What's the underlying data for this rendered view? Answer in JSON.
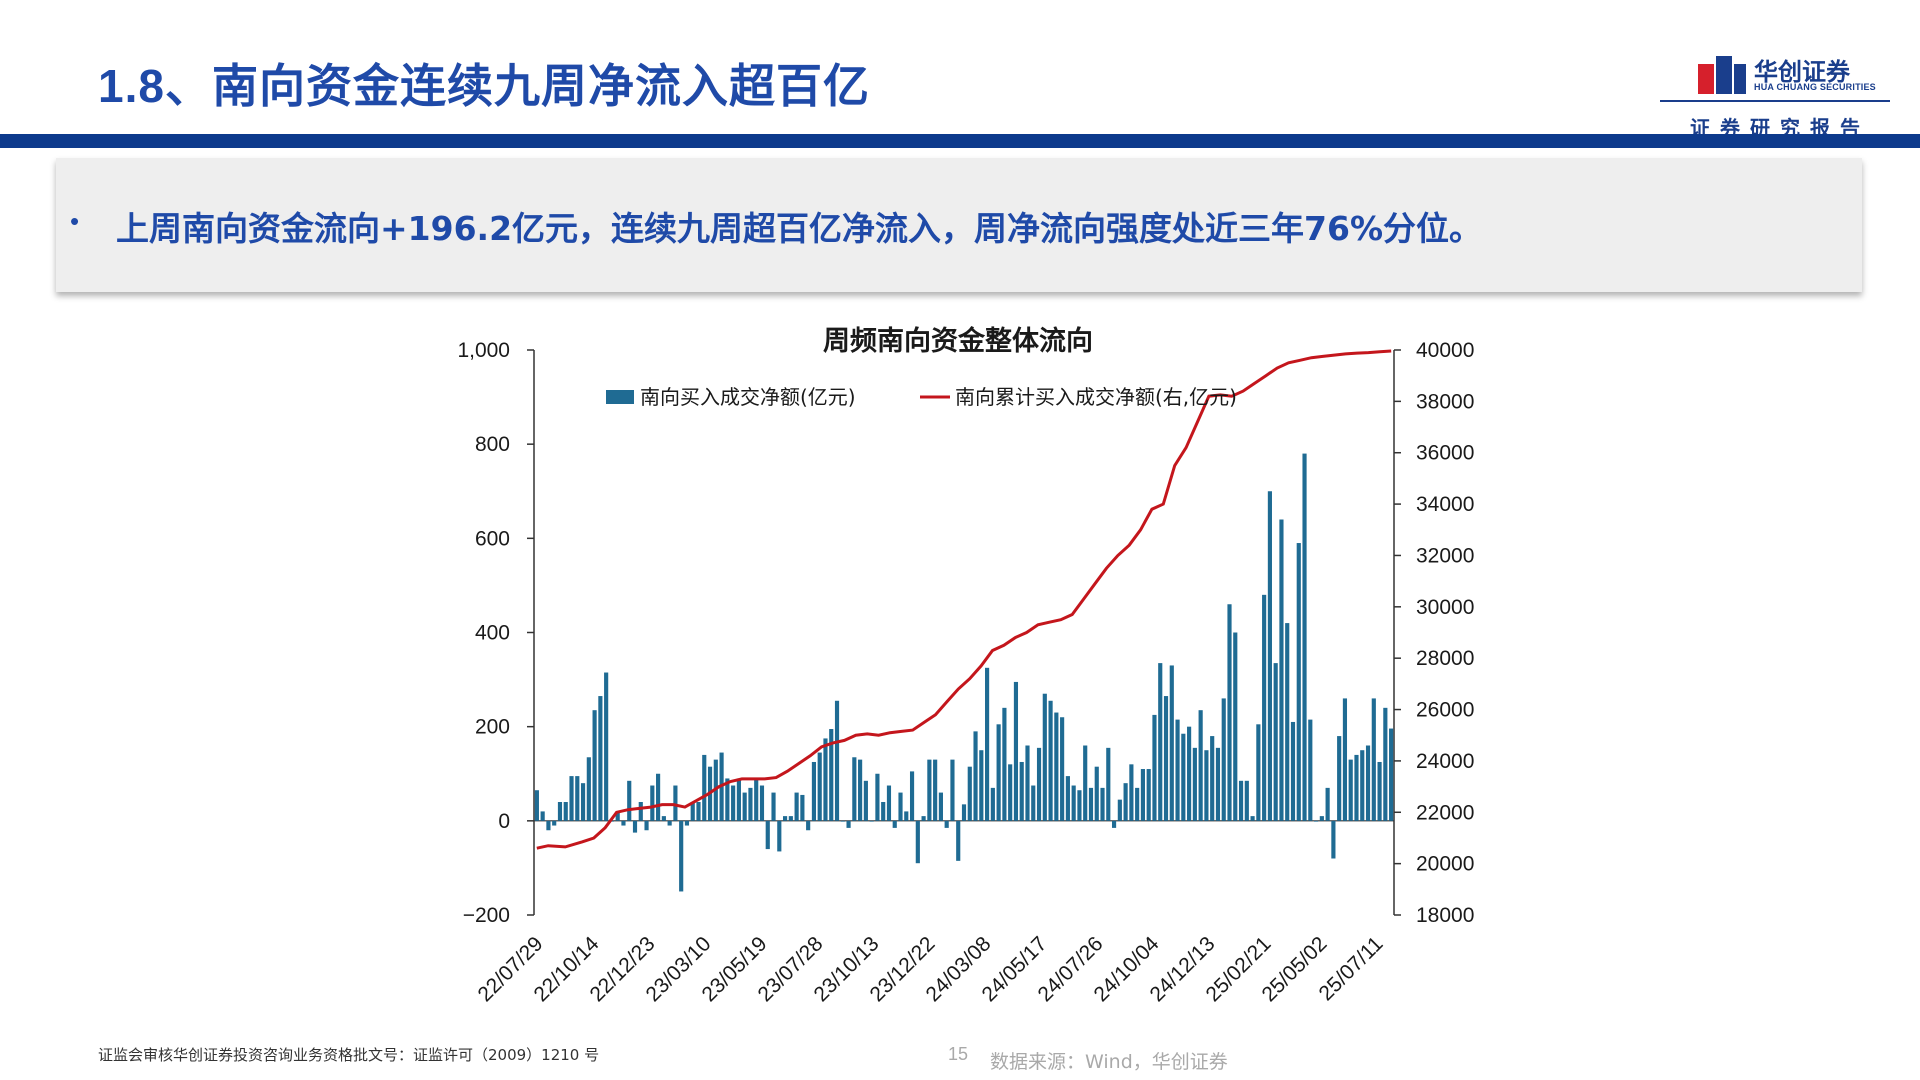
{
  "slide": {
    "title": "1.8、南向资金连续九周净流入超百亿",
    "summary_bullet": "•",
    "summary": "上周南向资金流向+196.2亿元，连续九周超百亿净流入，周净流向强度处近三年76%分位。"
  },
  "logo": {
    "company_cn": "华创证券",
    "company_en": "HUA CHUANG SECURITIES",
    "subtitle": "证券研究报告",
    "colors": {
      "blue": "#1a3e8c",
      "red": "#d6202c"
    }
  },
  "footer": {
    "license": "证监会审核华创证券投资咨询业务资格批文号：证监许可（2009）1210 号",
    "page_number": "15",
    "source": "数据来源：Wind，华创证券"
  },
  "colors": {
    "title_blue": "#1f4aa8",
    "bar_blue": "#1f6b93",
    "line_red": "#c4161c",
    "band": "#0d3a8c"
  },
  "chart_data": {
    "type": "bar",
    "title": "周频南向资金整体流向",
    "legend_position": "top",
    "grid": false,
    "x_tick_labels": [
      "22/07/29",
      "22/10/14",
      "22/12/23",
      "23/03/10",
      "23/05/19",
      "23/07/28",
      "23/10/13",
      "23/12/22",
      "24/03/08",
      "24/05/17",
      "24/07/26",
      "24/10/04",
      "24/12/13",
      "25/02/21",
      "25/05/02",
      "25/07/11"
    ],
    "y_left": {
      "ylim": [
        -200,
        1000
      ],
      "ticks": [
        "−200",
        "0",
        "200",
        "400",
        "600",
        "800",
        "1,000"
      ],
      "tick_values": [
        -200,
        0,
        200,
        400,
        600,
        800,
        1000
      ]
    },
    "y_right": {
      "ylim": [
        18000,
        40000
      ],
      "ticks": [
        "18000",
        "20000",
        "22000",
        "24000",
        "26000",
        "28000",
        "30000",
        "32000",
        "34000",
        "36000",
        "38000",
        "40000"
      ],
      "tick_values": [
        18000,
        20000,
        22000,
        24000,
        26000,
        28000,
        30000,
        32000,
        34000,
        36000,
        38000,
        40000
      ]
    },
    "series": [
      {
        "name": "南向买入成交净额(亿元)",
        "type": "bar",
        "axis": "left",
        "values": [
          65,
          20,
          -20,
          -10,
          40,
          40,
          95,
          95,
          80,
          135,
          235,
          265,
          315,
          0,
          20,
          -10,
          85,
          -25,
          40,
          -20,
          75,
          100,
          10,
          -10,
          75,
          -150,
          -10,
          40,
          40,
          140,
          115,
          130,
          145,
          90,
          75,
          90,
          60,
          70,
          90,
          75,
          -60,
          60,
          -65,
          10,
          10,
          60,
          55,
          -20,
          125,
          145,
          175,
          195,
          255,
          0,
          -15,
          135,
          130,
          85,
          0,
          100,
          40,
          75,
          -15,
          60,
          20,
          105,
          -90,
          10,
          130,
          130,
          60,
          -15,
          130,
          -85,
          35,
          115,
          190,
          150,
          325,
          70,
          205,
          240,
          120,
          295,
          125,
          160,
          75,
          155,
          270,
          255,
          230,
          220,
          95,
          75,
          65,
          160,
          70,
          115,
          70,
          155,
          -15,
          45,
          80,
          120,
          70,
          110,
          110,
          225,
          335,
          265,
          330,
          215,
          185,
          200,
          155,
          235,
          150,
          180,
          155,
          260,
          460,
          400,
          85,
          85,
          10,
          205,
          480,
          700,
          335,
          640,
          420,
          210,
          590,
          780,
          215,
          0,
          10,
          70,
          -80,
          180,
          260,
          130,
          140,
          150,
          160,
          260,
          125,
          240,
          196
        ]
      },
      {
        "name": "南向累计买入成交净额(右,亿元)",
        "type": "line",
        "axis": "right",
        "points_x": [
          0,
          2,
          5,
          8,
          10,
          12,
          14,
          16,
          18,
          20,
          22,
          24,
          26,
          28,
          30,
          32,
          34,
          36,
          38,
          40,
          42,
          44,
          46,
          48,
          50,
          52,
          54,
          56,
          58,
          60,
          62,
          64,
          66,
          68,
          70,
          72,
          74,
          76,
          78,
          80,
          82,
          84,
          86,
          88,
          90,
          92,
          94,
          96,
          98,
          100,
          102,
          104,
          106,
          108,
          110,
          112,
          114,
          116,
          118,
          120,
          122,
          124,
          126,
          128,
          130,
          132,
          134,
          136,
          138,
          140,
          142,
          144,
          146,
          148,
          150
        ],
        "values": [
          20600,
          20700,
          20650,
          20850,
          21000,
          21400,
          22000,
          22100,
          22150,
          22200,
          22300,
          22300,
          22200,
          22450,
          22700,
          23000,
          23200,
          23300,
          23300,
          23300,
          23350,
          23600,
          23900,
          24200,
          24550,
          24700,
          24800,
          25000,
          25050,
          25000,
          25100,
          25150,
          25200,
          25500,
          25800,
          26300,
          26800,
          27200,
          27700,
          28300,
          28500,
          28800,
          29000,
          29300,
          29400,
          29500,
          29700,
          30300,
          30900,
          31500,
          32000,
          32400,
          33000,
          33800,
          34000,
          35500,
          36200,
          37200,
          38200,
          38250,
          38200,
          38400,
          38700,
          39000,
          39300,
          39500,
          39600,
          39700,
          39750,
          39800,
          39850,
          39880,
          39900,
          39930,
          39960
        ],
        "points_x_scale_max": 151
      }
    ]
  }
}
